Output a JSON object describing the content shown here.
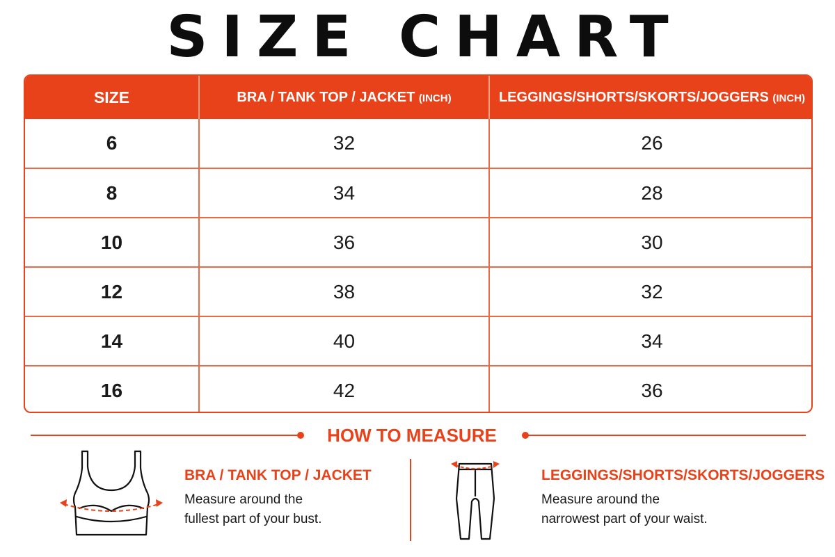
{
  "title": "SIZE CHART",
  "table": {
    "headers": {
      "size": "SIZE",
      "top": "BRA / TANK TOP / JACKET",
      "top_unit": "(INCH)",
      "bottom": "LEGGINGS/SHORTS/SKORTS/JOGGERS",
      "bottom_unit": "(INCH)"
    },
    "rows": [
      {
        "size": "6",
        "top": "32",
        "bottom": "26"
      },
      {
        "size": "8",
        "top": "34",
        "bottom": "28"
      },
      {
        "size": "10",
        "top": "36",
        "bottom": "30"
      },
      {
        "size": "12",
        "top": "38",
        "bottom": "32"
      },
      {
        "size": "14",
        "top": "40",
        "bottom": "34"
      },
      {
        "size": "16",
        "top": "42",
        "bottom": "36"
      }
    ]
  },
  "how_to_measure": {
    "heading": "HOW TO MEASURE",
    "bra": {
      "icon": "sports-bra-icon",
      "title": "BRA / TANK TOP / JACKET",
      "line1": "Measure around the",
      "line2": "fullest part of your bust."
    },
    "leggings": {
      "icon": "leggings-icon",
      "title": "LEGGINGS/SHORTS/SKORTS/JOGGERS",
      "line1": "Measure around the",
      "line2": "narrowest part of your waist."
    }
  },
  "colors": {
    "accent": "#e8421a",
    "text": "#111111",
    "background": "#ffffff"
  }
}
